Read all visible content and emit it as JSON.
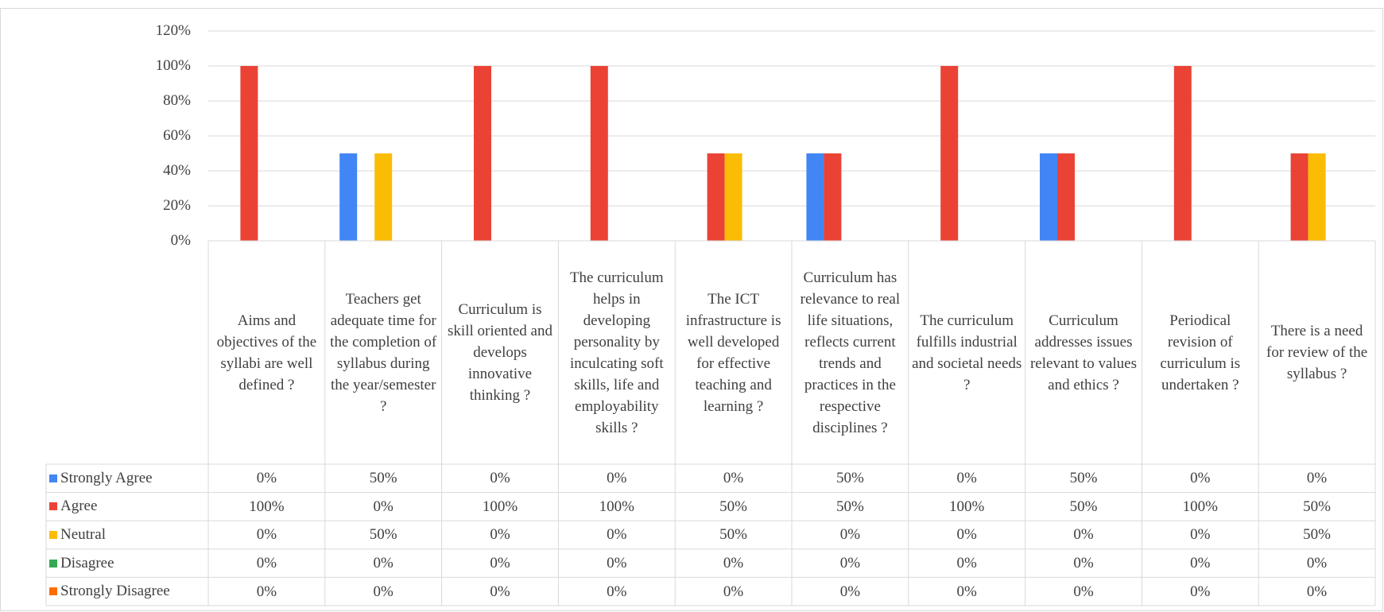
{
  "chart_data": {
    "type": "bar",
    "categories": [
      "Aims and objectives of the syllabi are well defined ?",
      "Teachers get adequate time for the completion of syllabus during the year/semester ?",
      "Curriculum is skill oriented and develops innovative thinking ?",
      "The curriculum helps in developing personality by inculcating soft skills, life and employability skills ?",
      "The ICT infrastructure is well developed for effective teaching and learning ?",
      "Curriculum has relevance to real life situations, reflects current trends and practices in the respective disciplines ?",
      "The curriculum fulfills industrial and societal needs ?",
      "Curriculum addresses issues relevant to values and ethics ?",
      "Periodical revision of curriculum is undertaken ?",
      "There is a need for review of the syllabus ?"
    ],
    "series": [
      {
        "name": "Strongly Agree",
        "color": "#4285f4",
        "values": [
          0,
          50,
          0,
          0,
          0,
          50,
          0,
          50,
          0,
          0
        ],
        "value_labels": [
          "0%",
          "50%",
          "0%",
          "0%",
          "0%",
          "50%",
          "0%",
          "50%",
          "0%",
          "0%"
        ]
      },
      {
        "name": "Agree",
        "color": "#ea4335",
        "values": [
          100,
          0,
          100,
          100,
          50,
          50,
          100,
          50,
          100,
          50
        ],
        "value_labels": [
          "100%",
          "0%",
          "100%",
          "100%",
          "50%",
          "50%",
          "100%",
          "50%",
          "100%",
          "50%"
        ]
      },
      {
        "name": "Neutral",
        "color": "#fbbc04",
        "values": [
          0,
          50,
          0,
          0,
          50,
          0,
          0,
          0,
          0,
          50
        ],
        "value_labels": [
          "0%",
          "50%",
          "0%",
          "0%",
          "50%",
          "0%",
          "0%",
          "0%",
          "0%",
          "50%"
        ]
      },
      {
        "name": "Disagree",
        "color": "#34a853",
        "values": [
          0,
          0,
          0,
          0,
          0,
          0,
          0,
          0,
          0,
          0
        ],
        "value_labels": [
          "0%",
          "0%",
          "0%",
          "0%",
          "0%",
          "0%",
          "0%",
          "0%",
          "0%",
          "0%"
        ]
      },
      {
        "name": "Strongly Disagree",
        "color": "#ff6d01",
        "values": [
          0,
          0,
          0,
          0,
          0,
          0,
          0,
          0,
          0,
          0
        ],
        "value_labels": [
          "0%",
          "0%",
          "0%",
          "0%",
          "0%",
          "0%",
          "0%",
          "0%",
          "0%",
          "0%"
        ]
      }
    ],
    "ylim": [
      0,
      120
    ],
    "yticks": [
      {
        "value": 0,
        "label": "0%"
      },
      {
        "value": 20,
        "label": "20%"
      },
      {
        "value": 40,
        "label": "40%"
      },
      {
        "value": 60,
        "label": "60%"
      },
      {
        "value": 80,
        "label": "80%"
      },
      {
        "value": 100,
        "label": "100%"
      },
      {
        "value": 120,
        "label": "120%"
      }
    ],
    "grid": true
  }
}
